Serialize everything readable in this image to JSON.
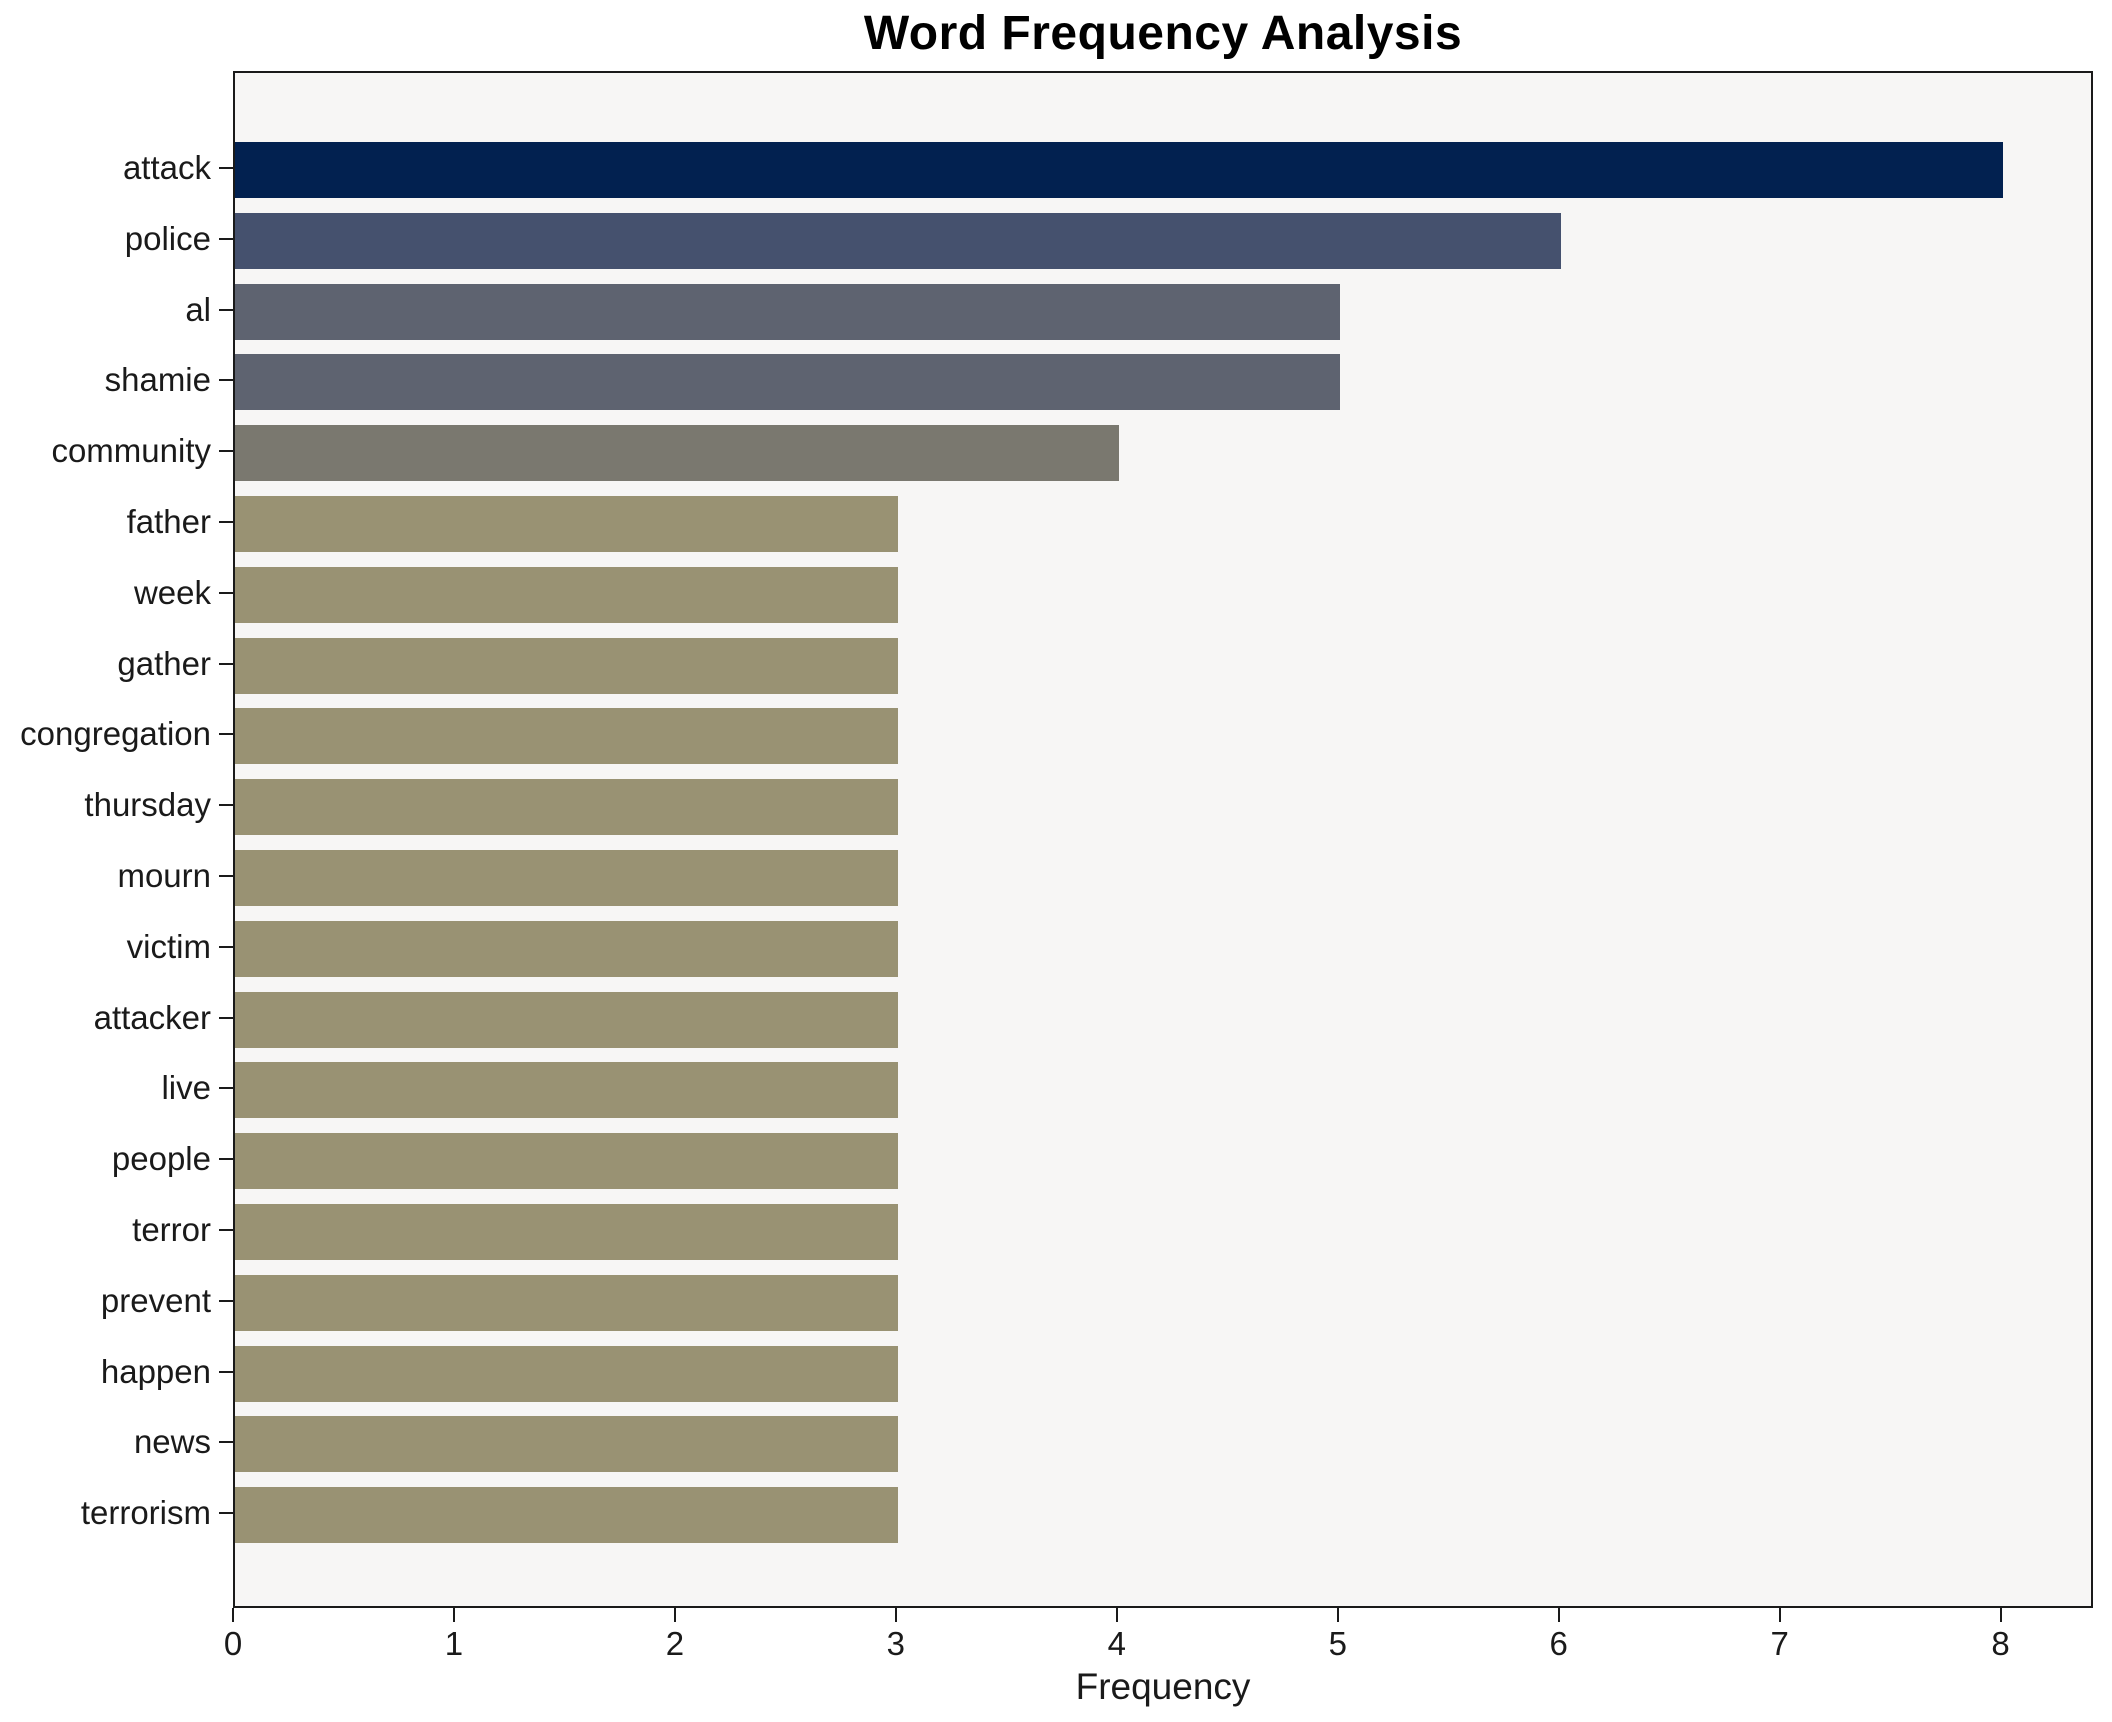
{
  "chart_data": {
    "type": "bar",
    "orientation": "horizontal",
    "title": "Word Frequency Analysis",
    "xlabel": "Frequency",
    "ylabel": "",
    "categories": [
      "attack",
      "police",
      "al",
      "shamie",
      "community",
      "father",
      "week",
      "gather",
      "congregation",
      "thursday",
      "mourn",
      "victim",
      "attacker",
      "live",
      "people",
      "terror",
      "prevent",
      "happen",
      "news",
      "terrorism"
    ],
    "values": [
      8,
      6,
      5,
      5,
      4,
      3,
      3,
      3,
      3,
      3,
      3,
      3,
      3,
      3,
      3,
      3,
      3,
      3,
      3,
      3
    ],
    "bar_colors": [
      "#022150",
      "#45516E",
      "#5E6370",
      "#5E6370",
      "#7A786F",
      "#999273",
      "#999273",
      "#999273",
      "#999273",
      "#999273",
      "#999273",
      "#999273",
      "#999273",
      "#999273",
      "#999273",
      "#999273",
      "#999273",
      "#999273",
      "#999273",
      "#999273"
    ],
    "xticks": [
      "0",
      "1",
      "2",
      "3",
      "4",
      "5",
      "6",
      "7",
      "8"
    ],
    "xtick_values": [
      0,
      1,
      2,
      3,
      4,
      5,
      6,
      7,
      8
    ],
    "xlim": [
      0,
      8.4
    ],
    "grid": false,
    "legend": null,
    "plot_background": "#f7f6f5",
    "figure_background": "#ffffff",
    "spine_color": "#1a1a1a",
    "text_color": "#1a1a1a"
  }
}
